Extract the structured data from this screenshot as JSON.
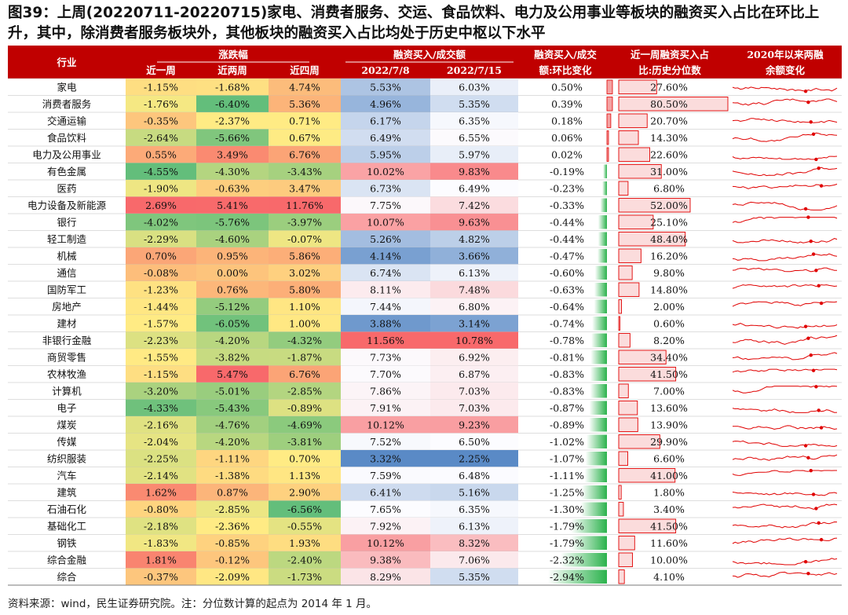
{
  "title": "图39：上周(20220711-20220715)家电、消费者服务、交运、食品饮料、电力及公用事业等板块的融资买入占比在环比上升，其中，除消费者服务板块外，其他板块的融资买入占比均处于历史中枢以下水平",
  "footnote": "资料来源：wind，民生证券研究院。注：分位数计算的起点为 2014 年 1 月。",
  "colors": {
    "header_bg": "#C00000",
    "header_text": "#FFFFFF",
    "bar": "#E00000",
    "bar_fill": "#F8C6C6",
    "green_bar": "#2BB24C",
    "spark": "#E00000"
  },
  "chart_data": {
    "type": "table",
    "headers": {
      "industry": "行业",
      "change_group": "涨跌幅",
      "w1": "近一周",
      "w2": "近两周",
      "w4": "近四周",
      "ratio_group": "融资买入/成交额",
      "d1": "2022/7/8",
      "d2": "2022/7/15",
      "chg_line1": "融资买入/成交",
      "chg_line2": "额:环比变化",
      "pct_line1": "近一周融资买入占",
      "pct_line2": "比:历史分位数",
      "spark_line1": "2020年以来两融",
      "spark_line2": "余额变化"
    },
    "rows": [
      {
        "industry": "家电",
        "w1": "-1.15%",
        "w2": "-1.68%",
        "w4": "4.74%",
        "d1": "5.53%",
        "d2": "6.03%",
        "chg": "0.50%",
        "pct": "27.60%"
      },
      {
        "industry": "消费者服务",
        "w1": "-1.76%",
        "w2": "-6.40%",
        "w4": "5.36%",
        "d1": "4.96%",
        "d2": "5.35%",
        "chg": "0.39%",
        "pct": "80.50%"
      },
      {
        "industry": "交通运输",
        "w1": "-0.35%",
        "w2": "-2.37%",
        "w4": "0.71%",
        "d1": "6.17%",
        "d2": "6.35%",
        "chg": "0.18%",
        "pct": "20.70%"
      },
      {
        "industry": "食品饮料",
        "w1": "-2.64%",
        "w2": "-5.66%",
        "w4": "0.67%",
        "d1": "6.49%",
        "d2": "6.55%",
        "chg": "0.06%",
        "pct": "14.30%"
      },
      {
        "industry": "电力及公用事业",
        "w1": "0.55%",
        "w2": "3.49%",
        "w4": "6.76%",
        "d1": "5.95%",
        "d2": "5.97%",
        "chg": "0.02%",
        "pct": "22.60%"
      },
      {
        "industry": "有色金属",
        "w1": "-4.55%",
        "w2": "-4.30%",
        "w4": "-3.43%",
        "d1": "10.02%",
        "d2": "9.83%",
        "chg": "-0.19%",
        "pct": "31.00%"
      },
      {
        "industry": "医药",
        "w1": "-1.90%",
        "w2": "-0.63%",
        "w4": "3.47%",
        "d1": "6.73%",
        "d2": "6.49%",
        "chg": "-0.23%",
        "pct": "6.80%"
      },
      {
        "industry": "电力设备及新能源",
        "w1": "2.69%",
        "w2": "5.41%",
        "w4": "11.76%",
        "d1": "7.75%",
        "d2": "7.42%",
        "chg": "-0.33%",
        "pct": "52.00%"
      },
      {
        "industry": "银行",
        "w1": "-4.02%",
        "w2": "-5.76%",
        "w4": "-3.97%",
        "d1": "10.07%",
        "d2": "9.63%",
        "chg": "-0.44%",
        "pct": "25.10%"
      },
      {
        "industry": "轻工制造",
        "w1": "-2.29%",
        "w2": "-4.60%",
        "w4": "-0.07%",
        "d1": "5.26%",
        "d2": "4.82%",
        "chg": "-0.44%",
        "pct": "48.40%"
      },
      {
        "industry": "机械",
        "w1": "0.70%",
        "w2": "0.95%",
        "w4": "5.86%",
        "d1": "4.14%",
        "d2": "3.66%",
        "chg": "-0.47%",
        "pct": "16.20%"
      },
      {
        "industry": "通信",
        "w1": "-0.08%",
        "w2": "0.00%",
        "w4": "3.02%",
        "d1": "6.74%",
        "d2": "6.13%",
        "chg": "-0.60%",
        "pct": "9.80%"
      },
      {
        "industry": "国防军工",
        "w1": "-1.23%",
        "w2": "0.76%",
        "w4": "5.80%",
        "d1": "8.11%",
        "d2": "7.48%",
        "chg": "-0.63%",
        "pct": "14.80%"
      },
      {
        "industry": "房地产",
        "w1": "-1.44%",
        "w2": "-5.12%",
        "w4": "1.10%",
        "d1": "7.44%",
        "d2": "6.80%",
        "chg": "-0.64%",
        "pct": "2.00%"
      },
      {
        "industry": "建材",
        "w1": "-1.57%",
        "w2": "-6.05%",
        "w4": "1.00%",
        "d1": "3.88%",
        "d2": "3.14%",
        "chg": "-0.74%",
        "pct": "0.60%"
      },
      {
        "industry": "非银行金融",
        "w1": "-2.23%",
        "w2": "-4.20%",
        "w4": "-4.32%",
        "d1": "11.56%",
        "d2": "10.78%",
        "chg": "-0.78%",
        "pct": "8.20%"
      },
      {
        "industry": "商贸零售",
        "w1": "-1.55%",
        "w2": "-3.82%",
        "w4": "-1.87%",
        "d1": "7.73%",
        "d2": "6.92%",
        "chg": "-0.81%",
        "pct": "34.40%"
      },
      {
        "industry": "农林牧渔",
        "w1": "-1.15%",
        "w2": "5.47%",
        "w4": "6.76%",
        "d1": "7.70%",
        "d2": "6.87%",
        "chg": "-0.83%",
        "pct": "41.50%"
      },
      {
        "industry": "计算机",
        "w1": "-3.20%",
        "w2": "-5.01%",
        "w4": "-2.85%",
        "d1": "7.86%",
        "d2": "7.03%",
        "chg": "-0.83%",
        "pct": "7.00%"
      },
      {
        "industry": "电子",
        "w1": "-4.33%",
        "w2": "-5.43%",
        "w4": "-0.89%",
        "d1": "7.91%",
        "d2": "7.03%",
        "chg": "-0.87%",
        "pct": "13.60%"
      },
      {
        "industry": "煤炭",
        "w1": "-2.16%",
        "w2": "-4.76%",
        "w4": "-4.69%",
        "d1": "10.12%",
        "d2": "9.23%",
        "chg": "-0.89%",
        "pct": "13.90%"
      },
      {
        "industry": "传媒",
        "w1": "-2.04%",
        "w2": "-4.20%",
        "w4": "-3.81%",
        "d1": "7.52%",
        "d2": "6.50%",
        "chg": "-1.02%",
        "pct": "29.90%"
      },
      {
        "industry": "纺织服装",
        "w1": "-2.25%",
        "w2": "-1.11%",
        "w4": "0.70%",
        "d1": "3.32%",
        "d2": "2.25%",
        "chg": "-1.07%",
        "pct": "6.60%"
      },
      {
        "industry": "汽车",
        "w1": "-2.14%",
        "w2": "-1.38%",
        "w4": "1.13%",
        "d1": "7.59%",
        "d2": "6.48%",
        "chg": "-1.11%",
        "pct": "41.00%"
      },
      {
        "industry": "建筑",
        "w1": "1.62%",
        "w2": "0.87%",
        "w4": "2.90%",
        "d1": "6.41%",
        "d2": "5.16%",
        "chg": "-1.25%",
        "pct": "1.80%"
      },
      {
        "industry": "石油石化",
        "w1": "-0.80%",
        "w2": "-2.85%",
        "w4": "-6.56%",
        "d1": "7.65%",
        "d2": "6.35%",
        "chg": "-1.30%",
        "pct": "3.40%"
      },
      {
        "industry": "基础化工",
        "w1": "-2.18%",
        "w2": "-2.36%",
        "w4": "-0.55%",
        "d1": "7.92%",
        "d2": "6.13%",
        "chg": "-1.79%",
        "pct": "41.50%"
      },
      {
        "industry": "钢铁",
        "w1": "-1.83%",
        "w2": "-0.85%",
        "w4": "1.93%",
        "d1": "10.12%",
        "d2": "8.32%",
        "chg": "-1.79%",
        "pct": "11.60%"
      },
      {
        "industry": "综合金融",
        "w1": "1.81%",
        "w2": "-0.12%",
        "w4": "-2.40%",
        "d1": "9.38%",
        "d2": "7.06%",
        "chg": "-2.32%",
        "pct": "10.00%"
      },
      {
        "industry": "综合",
        "w1": "-0.37%",
        "w2": "-2.09%",
        "w4": "-1.73%",
        "d1": "8.29%",
        "d2": "5.35%",
        "chg": "-2.94%",
        "pct": "4.10%"
      }
    ]
  }
}
